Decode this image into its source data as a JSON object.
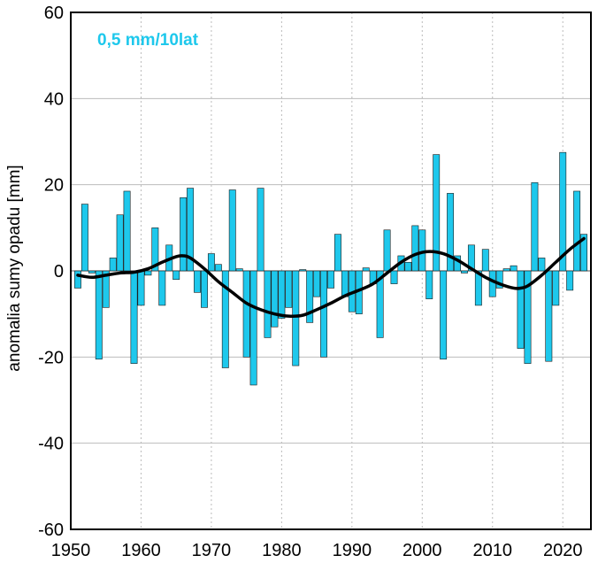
{
  "chart_data": {
    "type": "bar",
    "title": "",
    "annotation": "0,5 mm/10lat",
    "xlabel": "",
    "ylabel": "anomalia sumy opadu [mm]",
    "xlim": [
      1950,
      2024
    ],
    "ylim": [
      -60,
      60
    ],
    "xticks": [
      1950,
      1960,
      1970,
      1980,
      1990,
      2000,
      2010,
      2020
    ],
    "yticks": [
      -60,
      -40,
      -20,
      0,
      20,
      40,
      60
    ],
    "grid": true,
    "colors": {
      "bar": "#1ec8ec",
      "bar_edge": "#1a1a1a",
      "smooth_line": "#000000",
      "annotation": "#1ec8ec",
      "grid": "#bbbbbb"
    },
    "series": [
      {
        "type": "bar",
        "x": [
          1951,
          1952,
          1953,
          1954,
          1955,
          1956,
          1957,
          1958,
          1959,
          1960,
          1961,
          1962,
          1963,
          1964,
          1965,
          1966,
          1967,
          1968,
          1969,
          1970,
          1971,
          1972,
          1973,
          1974,
          1975,
          1976,
          1977,
          1978,
          1979,
          1980,
          1981,
          1982,
          1983,
          1984,
          1985,
          1986,
          1987,
          1988,
          1989,
          1990,
          1991,
          1992,
          1993,
          1994,
          1995,
          1996,
          1997,
          1998,
          1999,
          2000,
          2001,
          2002,
          2003,
          2004,
          2005,
          2006,
          2007,
          2008,
          2009,
          2010,
          2011,
          2012,
          2013,
          2014,
          2015,
          2016,
          2017,
          2018,
          2019,
          2020,
          2021,
          2022,
          2023
        ],
        "values": [
          -4,
          15.5,
          -0.5,
          -20.5,
          -8.5,
          3,
          13,
          18.5,
          -21.5,
          -8,
          -1,
          10,
          -8,
          6,
          -2,
          17,
          19.2,
          -5,
          -8.5,
          4,
          1.5,
          -22.5,
          18.8,
          0.5,
          -20,
          -26.5,
          19.2,
          -15.5,
          -13,
          -11,
          -8.5,
          -22,
          0.3,
          -12,
          -6,
          -20,
          -4,
          8.5,
          -6,
          -9.5,
          -10,
          0.7,
          -3,
          -15.5,
          9.5,
          -3,
          3.5,
          2,
          10.5,
          9.5,
          -6.5,
          27,
          -20.5,
          18,
          3.5,
          -0.5,
          6,
          -8,
          5,
          -6,
          -4,
          0.5,
          1.2,
          -18,
          -21.5,
          20.5,
          3,
          -21,
          -8,
          27.5,
          -4.5,
          18.5,
          8.5
        ]
      },
      {
        "type": "line",
        "x": [
          1951,
          1953,
          1955,
          1957,
          1959,
          1961,
          1963,
          1965,
          1966,
          1967,
          1969,
          1971,
          1973,
          1975,
          1977,
          1979,
          1981,
          1983,
          1985,
          1987,
          1989,
          1991,
          1993,
          1995,
          1997,
          1999,
          2001,
          2003,
          2005,
          2007,
          2009,
          2011,
          2013,
          2014,
          2015,
          2017,
          2019,
          2021,
          2023
        ],
        "values": [
          -1,
          -1.5,
          -1,
          -0.5,
          -0.3,
          0.5,
          2,
          3.3,
          3.5,
          3,
          0.5,
          -2.5,
          -5,
          -7.5,
          -9,
          -10,
          -10.5,
          -10.3,
          -9,
          -7.5,
          -5.8,
          -4.5,
          -3,
          -0.5,
          2,
          3.8,
          4.5,
          4,
          2.5,
          0.5,
          -1.5,
          -3,
          -4,
          -4,
          -3.5,
          -1,
          2,
          5,
          7.5
        ]
      }
    ]
  }
}
